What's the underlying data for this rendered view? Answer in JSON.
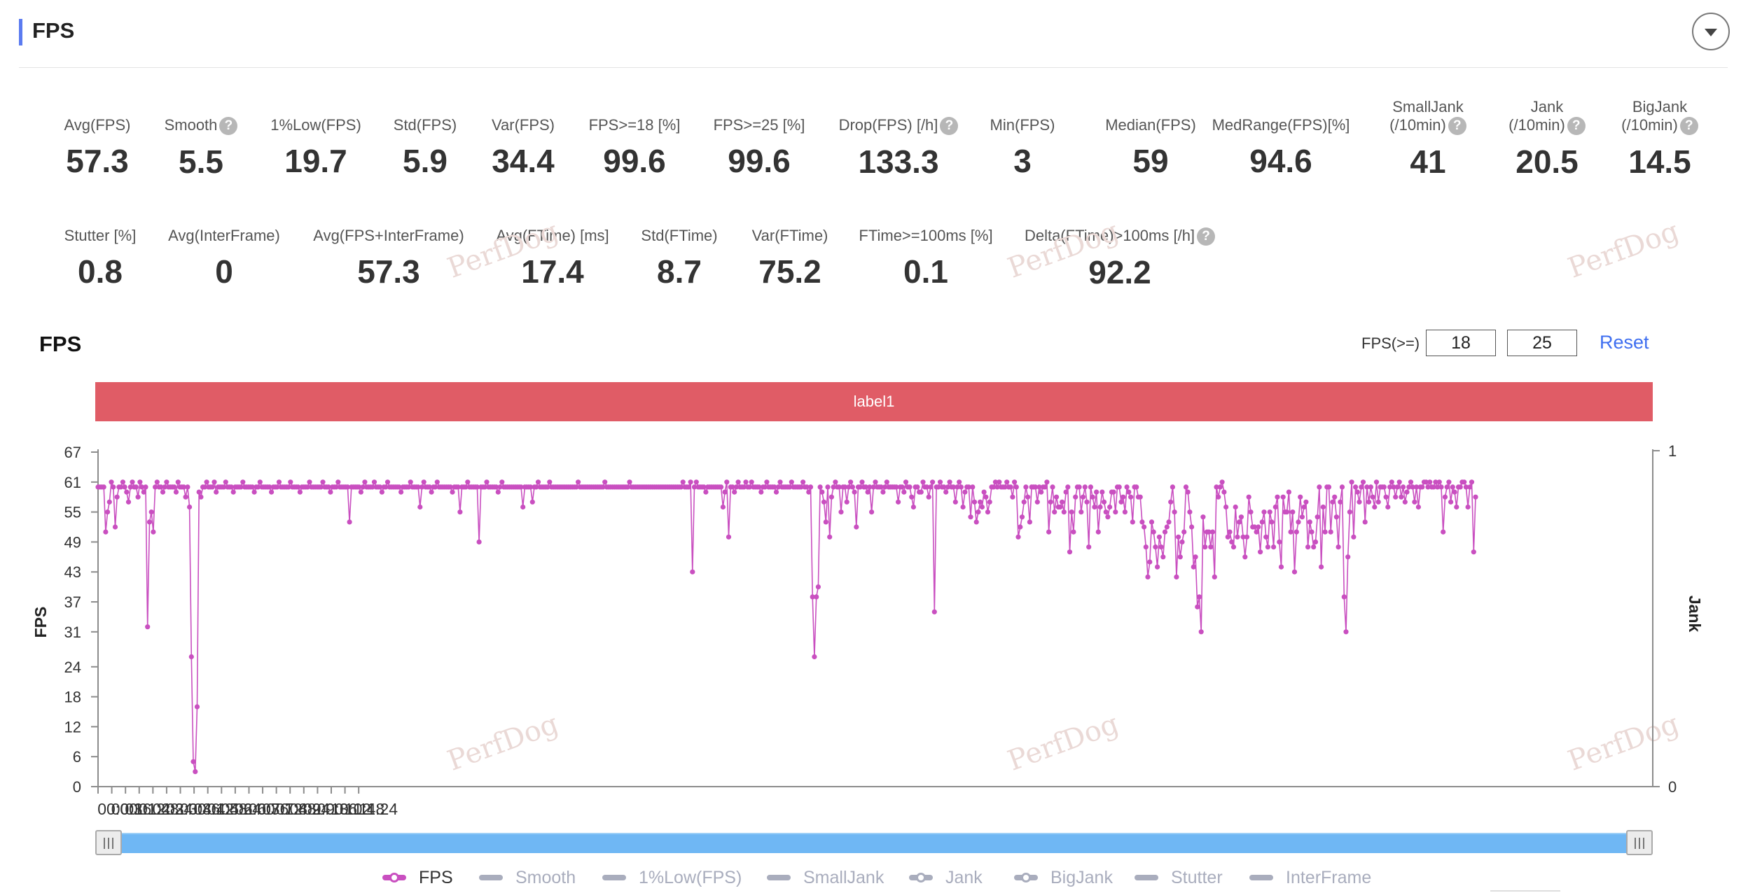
{
  "header": {
    "title": "FPS"
  },
  "metrics_row1": [
    {
      "label": "Avg(FPS)",
      "value": "57.3",
      "help": false
    },
    {
      "label": "Smooth",
      "value": "5.5",
      "help": true
    },
    {
      "label": "1%Low(FPS)",
      "value": "19.7",
      "help": false
    },
    {
      "label": "Std(FPS)",
      "value": "5.9",
      "help": false
    },
    {
      "label": "Var(FPS)",
      "value": "34.4",
      "help": false
    },
    {
      "label": "FPS>=18 [%]",
      "value": "99.6",
      "help": false
    },
    {
      "label": "FPS>=25 [%]",
      "value": "99.6",
      "help": false
    },
    {
      "label": "Drop(FPS) [/h]",
      "value": "133.3",
      "help": true
    },
    {
      "label": "Min(FPS)",
      "value": "3",
      "help": false
    },
    {
      "label": "Median(FPS)",
      "value": "59",
      "help": false
    },
    {
      "label": "MedRange(FPS)[%]",
      "value": "94.6",
      "help": false
    },
    {
      "label": "SmallJank",
      "label2": "(/10min)",
      "value": "41",
      "help": true
    },
    {
      "label": "Jank",
      "label2": "(/10min)",
      "value": "20.5",
      "help": true
    },
    {
      "label": "BigJank",
      "label2": "(/10min)",
      "value": "14.5",
      "help": true
    }
  ],
  "metrics_row2": [
    {
      "label": "Stutter [%]",
      "value": "0.8",
      "help": false
    },
    {
      "label": "Avg(InterFrame)",
      "value": "0",
      "help": false
    },
    {
      "label": "Avg(FPS+InterFrame)",
      "value": "57.3",
      "help": false
    },
    {
      "label": "Avg(FTime) [ms]",
      "value": "17.4",
      "help": false
    },
    {
      "label": "Std(FTime)",
      "value": "8.7",
      "help": false
    },
    {
      "label": "Var(FTime)",
      "value": "75.2",
      "help": false
    },
    {
      "label": "FTime>=100ms [%]",
      "value": "0.1",
      "help": false
    },
    {
      "label": "Delta(FTime)>100ms [/h]",
      "value": "92.2",
      "help": true
    }
  ],
  "help_glyph": "?",
  "watermark": "PerfDog",
  "chart_section": {
    "title": "FPS",
    "threshold_label": "FPS(>=)",
    "threshold_values": [
      "18",
      "25"
    ],
    "reset_label": "Reset",
    "band_label": "label1"
  },
  "legend": [
    {
      "name": "FPS",
      "color": "#c94fc0",
      "marker": "dot",
      "active": true
    },
    {
      "name": "Smooth",
      "color": "#a9adbd",
      "marker": "line",
      "active": false
    },
    {
      "name": "1%Low(FPS)",
      "color": "#a9adbd",
      "marker": "line",
      "active": false
    },
    {
      "name": "SmallJank",
      "color": "#a9adbd",
      "marker": "line",
      "active": false
    },
    {
      "name": "Jank",
      "color": "#a9adbd",
      "marker": "dot",
      "active": false
    },
    {
      "name": "BigJank",
      "color": "#a9adbd",
      "marker": "dot",
      "active": false
    },
    {
      "name": "Stutter",
      "color": "#a9adbd",
      "marker": "line",
      "active": false
    },
    {
      "name": "InterFrame",
      "color": "#a9adbd",
      "marker": "line",
      "active": false
    }
  ],
  "chart_data": {
    "type": "line",
    "ylabel": "FPS",
    "y2label": "Jank",
    "ylim": [
      0,
      67
    ],
    "yticks": [
      "0",
      "6",
      "12",
      "18",
      "24",
      "31",
      "37",
      "43",
      "49",
      "55",
      "61",
      "67"
    ],
    "y2ticks": [
      "0",
      "1"
    ],
    "xlim_seconds": [
      0,
      4080
    ],
    "xticks": [
      "00:00",
      "00:36",
      "01:12",
      "01:48",
      "02:24",
      "03:00",
      "03:36",
      "04:12",
      "04:48",
      "05:24",
      "06:00",
      "06:36",
      "07:12",
      "07:48",
      "08:24",
      "09:00",
      "09:36",
      "10:12",
      "10:48",
      "11:24"
    ],
    "grid": false,
    "series": [
      {
        "name": "FPS",
        "color": "#c94fc0",
        "sample_interval_s": 5,
        "values": [
          60,
          60,
          60,
          60,
          51,
          55,
          57,
          61,
          60,
          52,
          58,
          60,
          60,
          61,
          60,
          59,
          57,
          60,
          61,
          60,
          60,
          58,
          61,
          60,
          59,
          60,
          32,
          53,
          55,
          51,
          60,
          61,
          60,
          60,
          59,
          60,
          61,
          60,
          60,
          60,
          60,
          59,
          61,
          60,
          60,
          60,
          58,
          60,
          56,
          26,
          5,
          3,
          16,
          59,
          58,
          60,
          60,
          61,
          60,
          60,
          60,
          61,
          59,
          60,
          60,
          60,
          60,
          61,
          60,
          60,
          60,
          59,
          60,
          60,
          60,
          60,
          61,
          60,
          60,
          60,
          60,
          60,
          59,
          60,
          60,
          61,
          60,
          60,
          60,
          60,
          60,
          59,
          60,
          60,
          60,
          61,
          60,
          60,
          60,
          60,
          60,
          61,
          60,
          60,
          60,
          60,
          59,
          60,
          60,
          60,
          60,
          61,
          60,
          60,
          60,
          60,
          60,
          60,
          61,
          60,
          60,
          60,
          59,
          60,
          60,
          60,
          61,
          60,
          60,
          60,
          60,
          60,
          53,
          60,
          60,
          60,
          60,
          60,
          59,
          60,
          61,
          60,
          60,
          60,
          60,
          61,
          60,
          60,
          60,
          59,
          60,
          60,
          61,
          60,
          60,
          60,
          60,
          60,
          60,
          59,
          60,
          60,
          60,
          60,
          61,
          60,
          60,
          60,
          60,
          56,
          60,
          61,
          60,
          60,
          60,
          59,
          60,
          60,
          61,
          60,
          60,
          60,
          60,
          60,
          60,
          60,
          59,
          60,
          60,
          60,
          55,
          60,
          60,
          60,
          61,
          60,
          60,
          60,
          60,
          60,
          49,
          60,
          60,
          60,
          61,
          60,
          60,
          60,
          60,
          60,
          59,
          60,
          61,
          60,
          60,
          60,
          60,
          60,
          60,
          60,
          60,
          60,
          60,
          56,
          60,
          60,
          60,
          60,
          57,
          60,
          60,
          61,
          60,
          60,
          60,
          60,
          60,
          61,
          60,
          60,
          60,
          60,
          60,
          60,
          60,
          60,
          60,
          60,
          60,
          60,
          60,
          60,
          61,
          60,
          60,
          60,
          60,
          60,
          60,
          60,
          60,
          60,
          60,
          60,
          60,
          60,
          61,
          60,
          60,
          60,
          60,
          60,
          60,
          60,
          60,
          60,
          60,
          60,
          60,
          61,
          60,
          60,
          60,
          60,
          60,
          60,
          60,
          60,
          60,
          60,
          60,
          60,
          60,
          60,
          60,
          60,
          60,
          60,
          60,
          60,
          60,
          60,
          60,
          60,
          60,
          60,
          60,
          61,
          60,
          60,
          60,
          61,
          43,
          60,
          61,
          60,
          60,
          60,
          60,
          59,
          60,
          60,
          60,
          60,
          60,
          60,
          60,
          60,
          56,
          59,
          61,
          50,
          60,
          60,
          59,
          60,
          61,
          60,
          60,
          60,
          61,
          60,
          60,
          61,
          60,
          60,
          60,
          60,
          59,
          60,
          60,
          61,
          60,
          60,
          60,
          60,
          59,
          60,
          61,
          60,
          60,
          60,
          60,
          60,
          61,
          60,
          60,
          60,
          60,
          60,
          61,
          60,
          60,
          59,
          60,
          38,
          26,
          38,
          40,
          60,
          59,
          57,
          53,
          60,
          50,
          58,
          60,
          61,
          60,
          60,
          55,
          60,
          60,
          57,
          60,
          61,
          60,
          59,
          52,
          60,
          60,
          61,
          60,
          60,
          59,
          60,
          55,
          60,
          61,
          60,
          60,
          60,
          59,
          60,
          61,
          60,
          60,
          60,
          60,
          60,
          57,
          60,
          60,
          59,
          61,
          60,
          60,
          58,
          56,
          60,
          60,
          59,
          59,
          61,
          60,
          60,
          58,
          60,
          61,
          35,
          60,
          60,
          61,
          60,
          60,
          59,
          60,
          61,
          60,
          60,
          57,
          60,
          61,
          60,
          56,
          59,
          60,
          60,
          54,
          60,
          57,
          53,
          55,
          57,
          56,
          59,
          58,
          55,
          57,
          60,
          60,
          61,
          60,
          61,
          60,
          60,
          60,
          61,
          60,
          60,
          58,
          61,
          60,
          50,
          52,
          54,
          57,
          60,
          58,
          53,
          60,
          60,
          60,
          57,
          60,
          59,
          60,
          60,
          61,
          51,
          57,
          60,
          55,
          58,
          56,
          56,
          57,
          55,
          59,
          60,
          47,
          55,
          51,
          58,
          60,
          60,
          55,
          58,
          60,
          57,
          48,
          60,
          58,
          56,
          59,
          51,
          56,
          59,
          57,
          55,
          54,
          56,
          59,
          59,
          55,
          60,
          60,
          57,
          58,
          55,
          60,
          59,
          58,
          53,
          60,
          60,
          58,
          58,
          53,
          52,
          48,
          42,
          45,
          53,
          51,
          48,
          44,
          50,
          48,
          46,
          51,
          52,
          53,
          57,
          60,
          55,
          42,
          50,
          46,
          49,
          51,
          60,
          59,
          55,
          52,
          44,
          46,
          36,
          38,
          31,
          54,
          48,
          51,
          51,
          48,
          51,
          42,
          60,
          58,
          60,
          61,
          59,
          56,
          50,
          51,
          49,
          48,
          56,
          50,
          53,
          54,
          50,
          46,
          50,
          58,
          55,
          52,
          52,
          51,
          52,
          47,
          53,
          55,
          50,
          48,
          55,
          53,
          48,
          56,
          58,
          49,
          44,
          58,
          55,
          55,
          59,
          51,
          55,
          43,
          51,
          53,
          58,
          54,
          56,
          57,
          48,
          53,
          51,
          48,
          49,
          54,
          60,
          44,
          56,
          51,
          60,
          60,
          51,
          57,
          58,
          54,
          48,
          57,
          60,
          38,
          31,
          46,
          55,
          61,
          50,
          60,
          59,
          57,
          60,
          61,
          53,
          60,
          57,
          60,
          58,
          56,
          61,
          57,
          60,
          60,
          60,
          58,
          56,
          60,
          61,
          60,
          58,
          60,
          61,
          58,
          60,
          57,
          59,
          60,
          61,
          60,
          57,
          60,
          56,
          60,
          60,
          61,
          61,
          60,
          61,
          60,
          60,
          61,
          60,
          61,
          60,
          51,
          58,
          60,
          61,
          57,
          60,
          59,
          56,
          60,
          60,
          61,
          61,
          60,
          56,
          60,
          61,
          47,
          58
        ]
      }
    ]
  }
}
